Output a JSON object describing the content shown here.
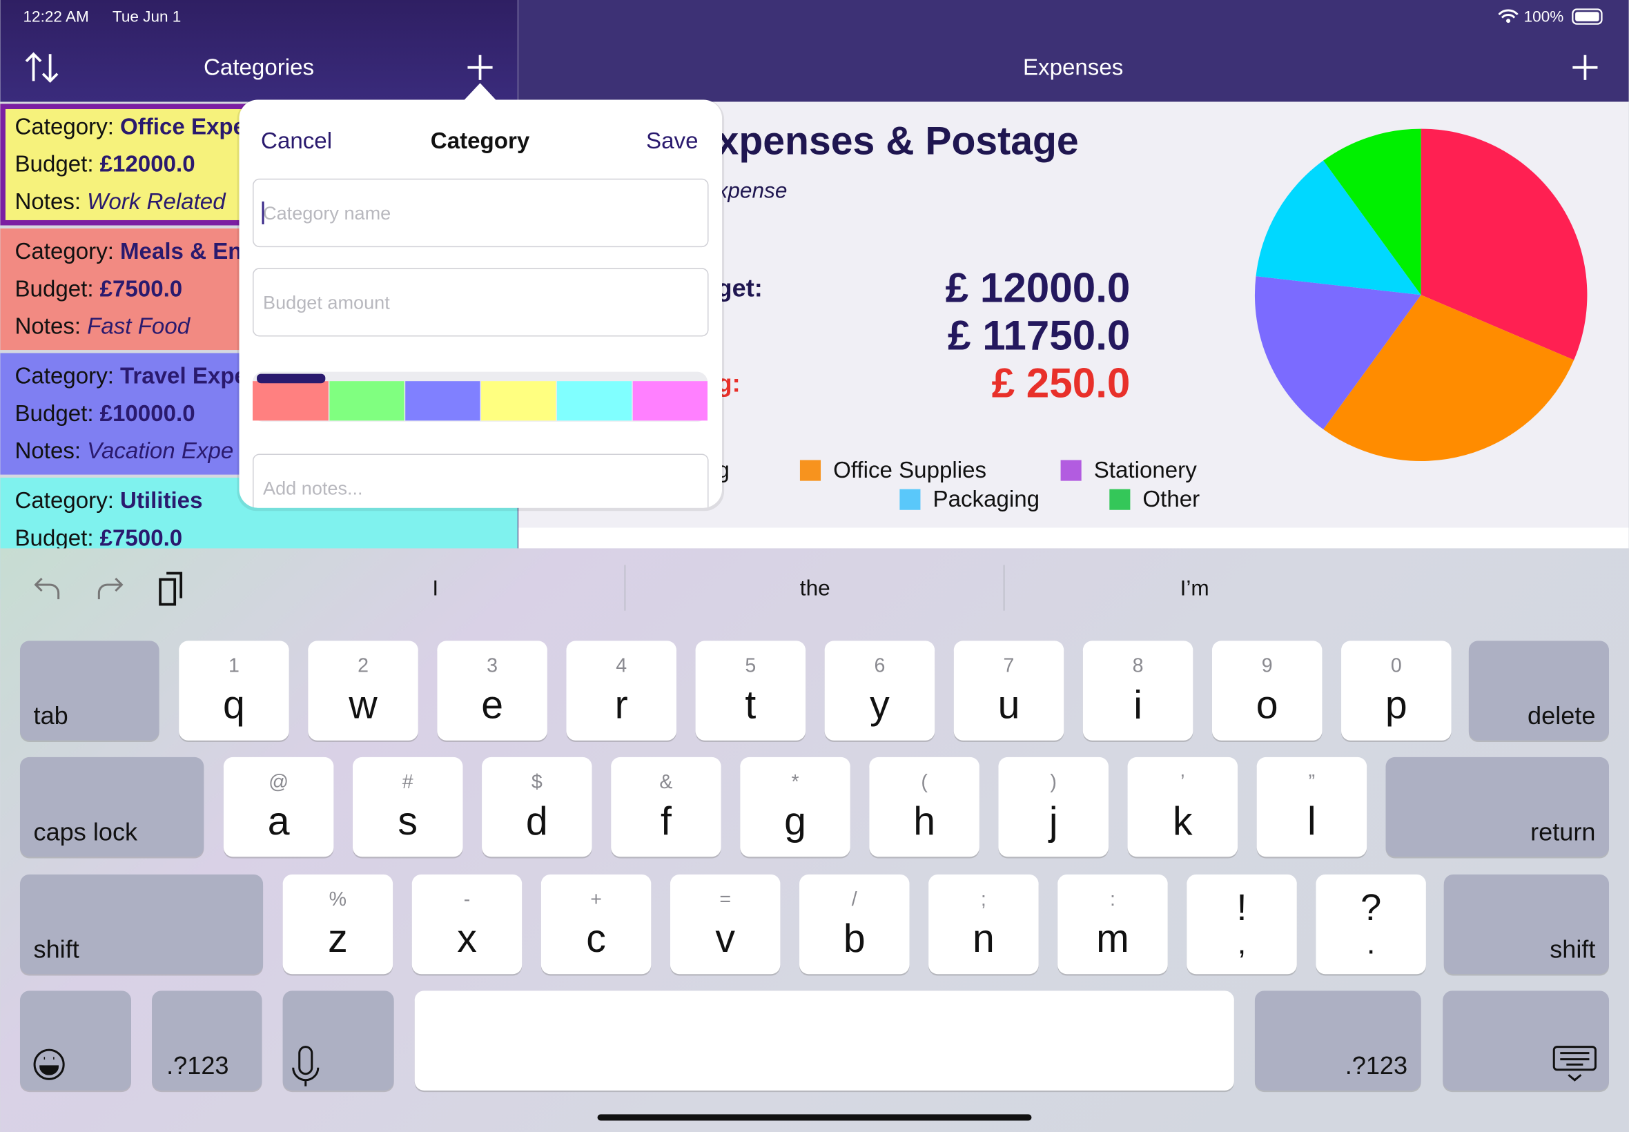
{
  "status_bar": {
    "time": "12:22 AM",
    "date": "Tue Jun 1",
    "battery": "100%"
  },
  "categories_panel": {
    "title": "Categories",
    "labels": [
      "Category:",
      "Budget:",
      "Notes:"
    ],
    "items": [
      {
        "name": "Office Expe",
        "budget": "£12000.0",
        "notes": "Work Related",
        "color": "#f6f27c"
      },
      {
        "name": "Meals & En",
        "budget": "£7500.0",
        "notes": "Fast Food",
        "color": "#f28a82"
      },
      {
        "name": "Travel Expe",
        "budget": "£10000.0",
        "notes": "Vacation Expe",
        "color": "#7f7ff2"
      },
      {
        "name": "Utilities",
        "budget": "£7500.0",
        "color": "#7ff2ee"
      }
    ]
  },
  "expenses_panel": {
    "title": "Expenses",
    "heading": "xpenses & Postage",
    "subheading": "xpense",
    "rows": [
      {
        "label": "get:",
        "amount": "£ 12000.0"
      },
      {
        "amount": "£ 11750.0"
      },
      {
        "label": "g:",
        "amount": "£ 250.0"
      }
    ]
  },
  "chart_data": {
    "type": "pie",
    "values": [
      31.4,
      28.6,
      16.8,
      13.2,
      10
    ],
    "colors": [
      "#ff2052",
      "#ff8c00",
      "#7b6bff",
      "#00d8ff",
      "#00f000"
    ],
    "legend": [
      {
        "name": "g"
      },
      {
        "name": "Office Supplies",
        "color": "#f7931e"
      },
      {
        "name": "Stationery",
        "color": "#b25ce0"
      },
      {
        "name": "Packaging",
        "color": "#5ac8fa"
      },
      {
        "name": "Other",
        "color": "#34c759"
      }
    ]
  },
  "popover": {
    "cancel": "Cancel",
    "title": "Category",
    "save": "Save",
    "fields": [
      "Category name",
      "Budget amount",
      "Add notes..."
    ],
    "swatches": [
      "#ff8080",
      "#80ff80",
      "#8080ff",
      "#ffff80",
      "#80ffff",
      "#ff80ff"
    ]
  },
  "keyboard": {
    "suggestions": [
      "I",
      "the",
      "I’m"
    ],
    "rows": [
      [
        {
          "label": "tab"
        },
        {
          "hint": "1",
          "label": "q"
        },
        {
          "hint": "2",
          "label": "w"
        },
        {
          "hint": "3",
          "label": "e"
        },
        {
          "hint": "4",
          "label": "r"
        },
        {
          "hint": "5",
          "label": "t"
        },
        {
          "hint": "6",
          "label": "y"
        },
        {
          "hint": "7",
          "label": "u"
        },
        {
          "hint": "8",
          "label": "i"
        },
        {
          "hint": "9",
          "label": "o"
        },
        {
          "hint": "0",
          "label": "p"
        },
        {
          "label": "delete"
        }
      ],
      [
        {
          "label": "caps lock"
        },
        {
          "hint": "@",
          "label": "a"
        },
        {
          "hint": "#",
          "label": "s"
        },
        {
          "hint": "$",
          "label": "d"
        },
        {
          "hint": "&",
          "label": "f"
        },
        {
          "hint": "*",
          "label": "g"
        },
        {
          "hint": "(",
          "label": "h"
        },
        {
          "hint": ")",
          "label": "j"
        },
        {
          "hint": "’",
          "label": "k"
        },
        {
          "hint": "”",
          "label": "l"
        },
        {
          "label": "return"
        }
      ],
      [
        {
          "label": "shift"
        },
        {
          "hint": "%",
          "label": "z"
        },
        {
          "hint": "-",
          "label": "x"
        },
        {
          "hint": "+",
          "label": "c"
        },
        {
          "hint": "=",
          "label": "v"
        },
        {
          "hint": "/",
          "label": "b"
        },
        {
          "hint": ";",
          "label": "n"
        },
        {
          "hint": ":",
          "label": "m"
        },
        {
          "upper": "!",
          "lower": ","
        },
        {
          "upper": "?",
          "lower": "."
        },
        {
          "label": "shift"
        }
      ]
    ],
    "bottom_row": [
      ".?123",
      ".?123"
    ]
  }
}
